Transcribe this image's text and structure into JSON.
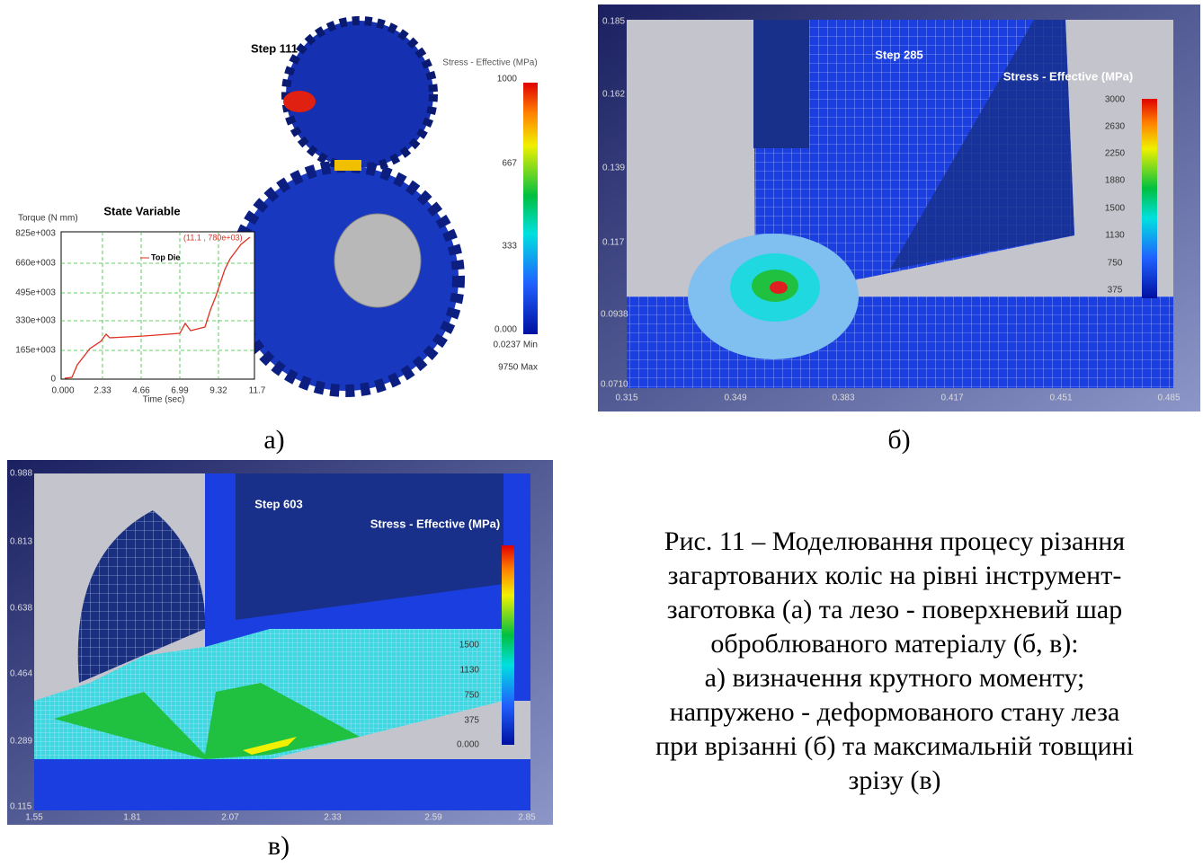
{
  "figure": {
    "panel_a": {
      "label": "а)",
      "step": "Step  111",
      "legend_title": "Stress - Effective (MPa)",
      "legend_ticks": [
        "1000",
        "667",
        "333",
        "0.000"
      ],
      "min": "0.0237  Min",
      "max": "9750  Max",
      "graph": {
        "title": "State Variable",
        "y_label": "Torque (N mm)",
        "yticks": [
          "825e+003",
          "660e+003",
          "495e+003",
          "330e+003",
          "165e+003",
          "0"
        ],
        "xticks": [
          "0.000",
          "2.33",
          "4.66",
          "6.99",
          "9.32",
          "11.7"
        ],
        "x_label": "Time (sec)",
        "legend": "Top Die",
        "annotation": "(11.1 , 780e+03)"
      }
    },
    "panel_b": {
      "label": "б)",
      "step": "Step  285",
      "legend_title": "Stress - Effective (MPa)",
      "legend_ticks": [
        "3000",
        "2630",
        "2250",
        "1880",
        "1500",
        "1130",
        "750",
        "375"
      ],
      "yticks": [
        "0.185",
        "0.162",
        "0.139",
        "0.117",
        "0.0938",
        "0.0710"
      ],
      "xticks": [
        "0.315",
        "0.349",
        "0.383",
        "0.417",
        "0.451",
        "0.485"
      ]
    },
    "panel_c": {
      "label": "в)",
      "step": "Step  603",
      "legend_title": "Stress - Effective (MPa)",
      "legend_ticks": [
        "1500",
        "1130",
        "750",
        "375",
        "0.000"
      ],
      "yticks": [
        "0.988",
        "0.813",
        "0.638",
        "0.464",
        "0.289",
        "0.115"
      ],
      "xticks": [
        "1.55",
        "1.81",
        "2.07",
        "2.33",
        "2.59",
        "2.85"
      ]
    },
    "caption": [
      "Рис. 11 – Моделювання процесу різання",
      "загартованих коліс на рівні інструмент-",
      "заготовка (а) та лезо - поверхневий шар",
      "оброблюваного матеріалу (б, в):",
      "а) визначення крутного моменту;",
      "напружено - деформованого стану леза",
      "при врізанні (б) та максимальній товщині",
      "зрізу (в)"
    ]
  }
}
